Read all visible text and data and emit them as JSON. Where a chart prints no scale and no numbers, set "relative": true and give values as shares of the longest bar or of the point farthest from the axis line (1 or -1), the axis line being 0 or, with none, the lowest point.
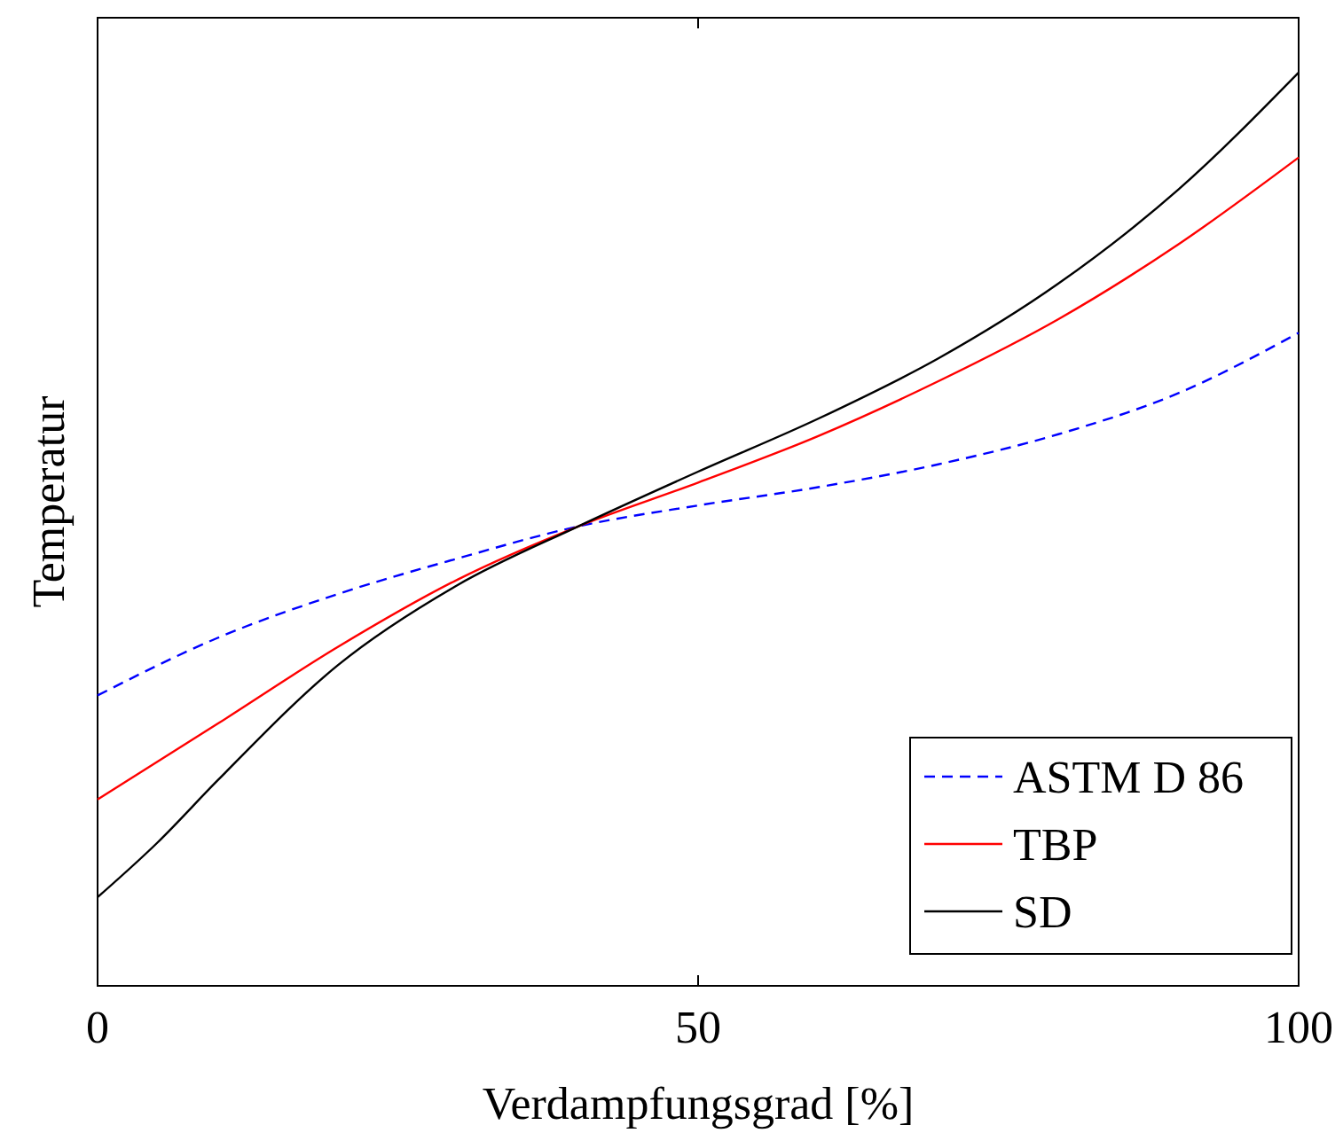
{
  "chart_data": {
    "type": "line",
    "xlabel": "Verdampfungsgrad [%]",
    "ylabel": "Temperatur",
    "relative": true,
    "xlim": [
      0,
      100
    ],
    "xticks": [
      0,
      50,
      100
    ],
    "legend": "bottom right",
    "series": [
      {
        "name": "ASTM D 86",
        "color": "#0000ff",
        "line_style": "dashed",
        "x": [
          0,
          10,
          20,
          30,
          40,
          50,
          60,
          70,
          80,
          90,
          100
        ],
        "values": [
          0.318,
          0.381,
          0.429,
          0.468,
          0.503,
          0.526,
          0.546,
          0.571,
          0.604,
          0.649,
          0.715
        ]
      },
      {
        "name": "TBP",
        "color": "#ff0000",
        "line_style": "solid",
        "x": [
          0,
          10,
          20,
          30,
          40,
          50,
          60,
          70,
          80,
          90,
          100
        ],
        "values": [
          0.204,
          0.287,
          0.371,
          0.445,
          0.503,
          0.551,
          0.602,
          0.662,
          0.73,
          0.812,
          0.907
        ]
      },
      {
        "name": "SD",
        "color": "#000000",
        "line_style": "solid",
        "x": [
          0,
          5,
          10,
          20,
          30,
          40,
          50,
          60,
          70,
          80,
          90,
          100
        ],
        "values": [
          0.097,
          0.157,
          0.225,
          0.351,
          0.439,
          0.503,
          0.563,
          0.621,
          0.687,
          0.769,
          0.872,
          1.0
        ]
      }
    ]
  }
}
